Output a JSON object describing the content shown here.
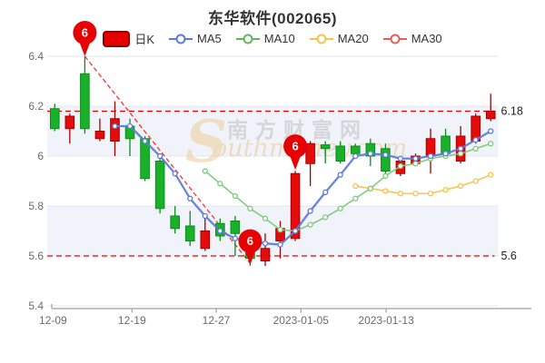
{
  "title": "东华软件(002065)",
  "legend": {
    "items": [
      {
        "label": "日K",
        "type": "candle",
        "color": "#e60000",
        "border": "#8c0000"
      },
      {
        "label": "MA5",
        "type": "line",
        "color": "#5b7bd9"
      },
      {
        "label": "MA10",
        "type": "line",
        "color": "#5cb85c"
      },
      {
        "label": "MA20",
        "type": "line",
        "color": "#f6c34a"
      },
      {
        "label": "MA30",
        "type": "line",
        "color": "#e85b5b"
      }
    ]
  },
  "watermark": {
    "cn": "南方财富网",
    "en_initial": "S",
    "en_rest": "outhmoney.com"
  },
  "chart_data": {
    "type": "candlestick",
    "title": "东华软件(002065)",
    "x_ticks": [
      {
        "label": "12-09",
        "f": 0.012
      },
      {
        "label": "12-19",
        "f": 0.175
      },
      {
        "label": "12-27",
        "f": 0.349
      },
      {
        "label": "2023-01-05",
        "f": 0.524
      },
      {
        "label": "2023-01-13",
        "f": 0.7
      }
    ],
    "y_ticks": [
      {
        "v": 6.4,
        "label": "6.4"
      },
      {
        "v": 6.2,
        "label": "6.2"
      },
      {
        "v": 6.0,
        "label": "6"
      },
      {
        "v": 5.8,
        "label": "5.8"
      },
      {
        "v": 5.6,
        "label": "5.6"
      },
      {
        "v": 5.4,
        "label": "5.4"
      }
    ],
    "ylim": [
      5.4,
      6.45
    ],
    "shaded_bands": [
      [
        6.2,
        6.0
      ],
      [
        5.8,
        5.6
      ]
    ],
    "grid": true,
    "legend_position": "top",
    "candles": [
      [
        6.19,
        6.11,
        6.21,
        6.1,
        "d"
      ],
      [
        6.11,
        6.16,
        6.17,
        6.05,
        "u"
      ],
      [
        6.33,
        6.11,
        6.4,
        6.09,
        "d"
      ],
      [
        6.07,
        6.1,
        6.15,
        6.06,
        "u"
      ],
      [
        6.06,
        6.15,
        6.22,
        6.0,
        "u"
      ],
      [
        6.12,
        6.07,
        6.15,
        6.0,
        "d"
      ],
      [
        6.07,
        5.91,
        6.08,
        5.9,
        "d"
      ],
      [
        5.98,
        5.79,
        6.0,
        5.77,
        "d"
      ],
      [
        5.76,
        5.71,
        5.8,
        5.69,
        "d"
      ],
      [
        5.72,
        5.66,
        5.78,
        5.64,
        "d"
      ],
      [
        5.63,
        5.7,
        5.75,
        5.62,
        "u"
      ],
      [
        5.73,
        5.68,
        5.75,
        5.66,
        "d"
      ],
      [
        5.74,
        5.69,
        5.76,
        5.6,
        "d"
      ],
      [
        5.64,
        5.59,
        5.66,
        5.56,
        "d"
      ],
      [
        5.58,
        5.63,
        5.69,
        5.56,
        "u"
      ],
      [
        5.66,
        5.71,
        5.74,
        5.59,
        "u"
      ],
      [
        5.67,
        5.93,
        5.94,
        5.66,
        "u"
      ],
      [
        5.97,
        6.05,
        6.06,
        5.88,
        "u"
      ],
      [
        6.045,
        6.03,
        6.06,
        5.97,
        "d"
      ],
      [
        6.04,
        5.98,
        6.06,
        5.97,
        "d"
      ],
      [
        6.04,
        6.01,
        6.05,
        6.0,
        "d"
      ],
      [
        6.05,
        6.0,
        6.07,
        5.96,
        "d"
      ],
      [
        6.03,
        5.94,
        6.05,
        5.93,
        "d"
      ],
      [
        5.93,
        5.98,
        5.99,
        5.92,
        "u"
      ],
      [
        5.97,
        6.0,
        6.01,
        5.96,
        "u"
      ],
      [
        6.0,
        6.07,
        6.11,
        5.93,
        "u"
      ],
      [
        6.08,
        6.01,
        6.11,
        6.0,
        "d"
      ],
      [
        5.98,
        6.08,
        6.12,
        5.97,
        "u"
      ],
      [
        6.06,
        6.16,
        6.17,
        6.05,
        "u"
      ],
      [
        6.15,
        6.18,
        6.25,
        6.14,
        "u"
      ]
    ],
    "series": [
      {
        "name": "MA5",
        "color": "#5b7bd9",
        "width": 2.3,
        "values": [
          null,
          null,
          null,
          null,
          6.12,
          6.12,
          6.06,
          6.0,
          5.93,
          5.83,
          5.76,
          5.7,
          5.67,
          5.66,
          5.65,
          5.645,
          5.7,
          5.78,
          5.855,
          5.925,
          6.0,
          6.01,
          6.005,
          5.99,
          5.99,
          6.0,
          6.01,
          6.03,
          6.065,
          6.1
        ]
      },
      {
        "name": "MA10",
        "color": "#7ec97e",
        "width": 1.7,
        "values": [
          null,
          null,
          null,
          null,
          null,
          null,
          null,
          null,
          null,
          null,
          5.94,
          5.89,
          5.84,
          5.79,
          5.75,
          5.705,
          5.7,
          5.725,
          5.755,
          5.79,
          5.83,
          5.87,
          5.92,
          5.96,
          5.97,
          5.99,
          6.0,
          6.01,
          6.03,
          6.05
        ]
      },
      {
        "name": "MA20",
        "color": "#f6c34a",
        "width": 1.7,
        "values": [
          null,
          null,
          null,
          null,
          null,
          null,
          null,
          null,
          null,
          null,
          null,
          null,
          null,
          null,
          null,
          null,
          null,
          null,
          null,
          null,
          5.88,
          5.87,
          5.86,
          5.85,
          5.85,
          5.85,
          5.865,
          5.88,
          5.9,
          5.925
        ]
      },
      {
        "name": "MA30",
        "color": "#e85b5b",
        "width": 1.7,
        "values": [
          null,
          null,
          null,
          null,
          null,
          null,
          null,
          null,
          null,
          null,
          null,
          null,
          null,
          null,
          null,
          null,
          null,
          null,
          null,
          null,
          null,
          null,
          null,
          null,
          null,
          null,
          null,
          null,
          null,
          null
        ]
      }
    ],
    "price_lines": [
      {
        "value": 6.18,
        "label": "6.18"
      },
      {
        "value": 5.6,
        "label": "5.6"
      }
    ],
    "trendline": {
      "from": {
        "index": 2,
        "price": 6.4
      },
      "to": {
        "index": 13,
        "price": 5.57
      },
      "style": "dashed"
    },
    "pins": [
      {
        "index": 2,
        "price": 6.4,
        "label": "6"
      },
      {
        "index": 13,
        "price": 5.565,
        "label": "6"
      },
      {
        "index": 16,
        "price": 5.945,
        "label": "6"
      }
    ],
    "colors": {
      "up": "#e60b0b",
      "up_border": "#a40000",
      "down": "#18b127",
      "down_border": "#0d8c1c",
      "pin": "#e60202",
      "dashed": "#ff1a1a",
      "band": "#f0f3fa",
      "gridline": "#e3e7f0",
      "axis": "#9aa0a6",
      "axis_text": "#6b6b6b",
      "price_label_text": "#222222"
    }
  }
}
